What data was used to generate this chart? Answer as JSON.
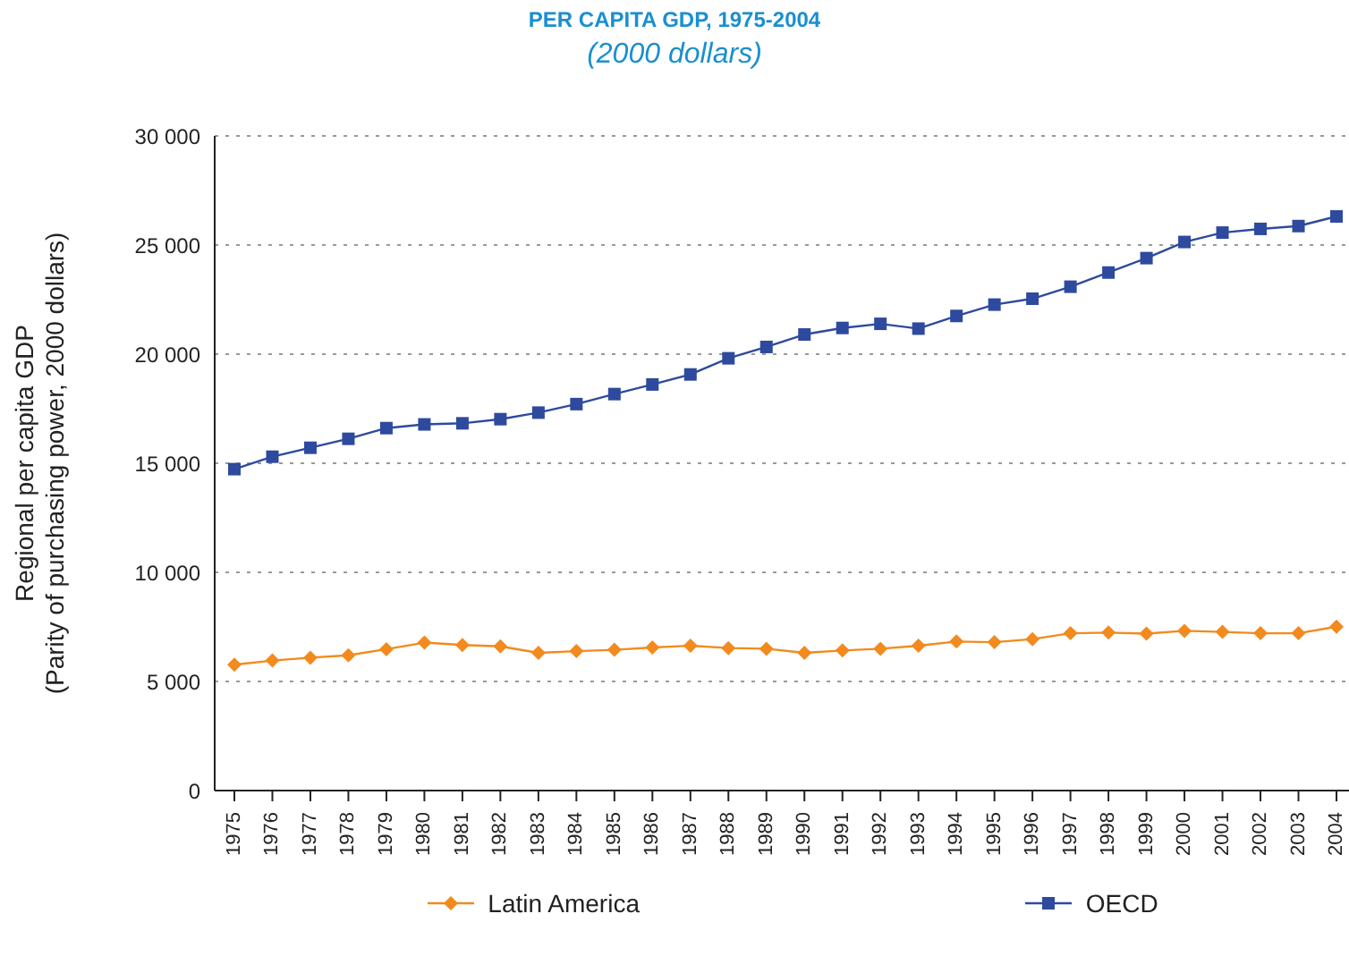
{
  "chart_data": {
    "type": "line",
    "title": "PER CAPITA GDP, 1975-2004",
    "subtitle": "(2000 dollars)",
    "ylabel": "Regional per capita GDP\n(Parity of purchasing power, 2000 dollars)",
    "categories": [
      "1975",
      "1976",
      "1977",
      "1978",
      "1979",
      "1980",
      "1981",
      "1982",
      "1983",
      "1984",
      "1985",
      "1986",
      "1987",
      "1988",
      "1989",
      "1990",
      "1991",
      "1992",
      "1993",
      "1994",
      "1995",
      "1996",
      "1997",
      "1998",
      "1999",
      "2000",
      "2001",
      "2002",
      "2003",
      "2004"
    ],
    "series": [
      {
        "name": "Latin America",
        "color": "#f28a1e",
        "marker": "diamond",
        "values": [
          5770,
          5960,
          6090,
          6200,
          6480,
          6780,
          6670,
          6610,
          6310,
          6390,
          6450,
          6560,
          6640,
          6530,
          6500,
          6310,
          6420,
          6500,
          6640,
          6830,
          6800,
          6940,
          7210,
          7240,
          7190,
          7320,
          7270,
          7210,
          7210,
          7510
        ]
      },
      {
        "name": "OECD",
        "color": "#2e4a9e",
        "marker": "square",
        "values": [
          14730,
          15300,
          15710,
          16120,
          16610,
          16780,
          16830,
          17020,
          17320,
          17710,
          18170,
          18610,
          19070,
          19810,
          20330,
          20900,
          21200,
          21390,
          21170,
          21750,
          22270,
          22540,
          23090,
          23740,
          24400,
          25140,
          25570,
          25740,
          25870,
          26310
        ]
      }
    ],
    "ylim": [
      0,
      30000
    ],
    "yticks": [
      0,
      {
        "value": 5000,
        "label": "5 000"
      },
      {
        "value": 10000,
        "label": "10 000"
      },
      {
        "value": 15000,
        "label": "15 000"
      },
      {
        "value": 20000,
        "label": "20 000"
      },
      {
        "value": 25000,
        "label": "25 000"
      },
      {
        "value": 30000,
        "label": "30 000"
      }
    ],
    "grid": "y",
    "legend": "bottom",
    "line_style": "solid"
  }
}
